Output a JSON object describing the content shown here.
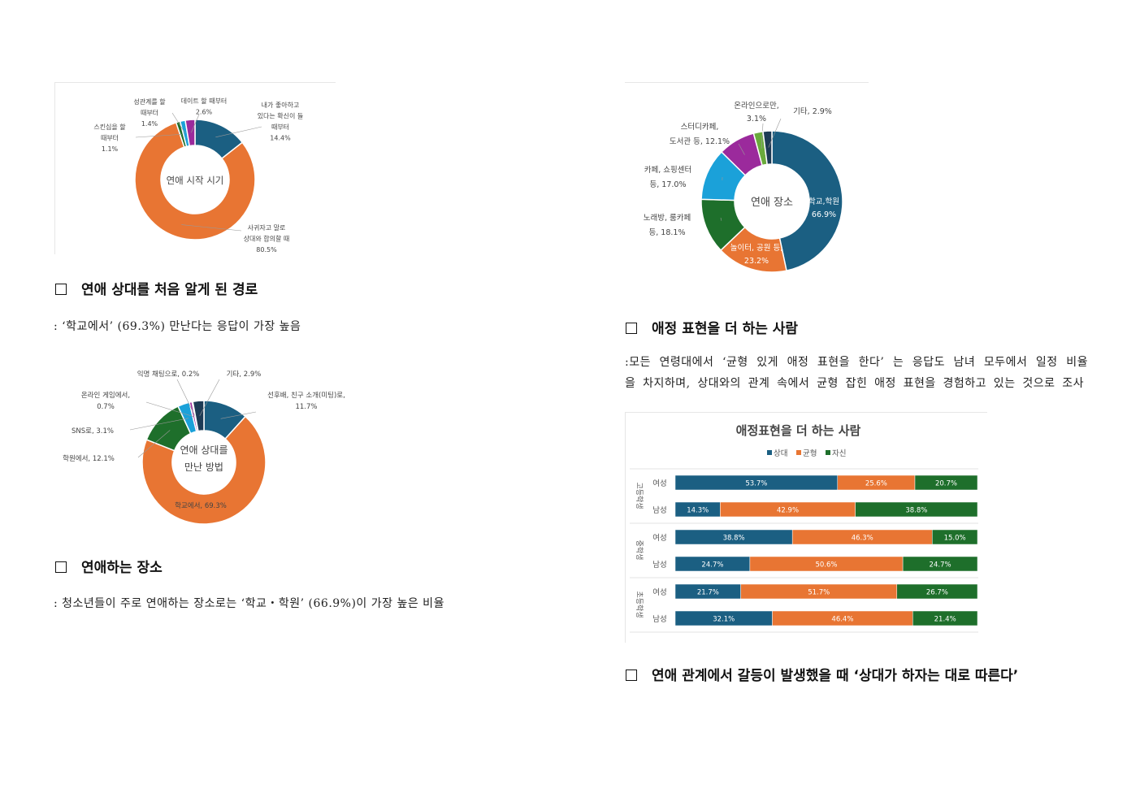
{
  "colors": {
    "blue": "#1b5f82",
    "orange": "#e87533",
    "green": "#1e6f2b",
    "lightblue": "#1ba1d9",
    "purple": "#9b2a9c",
    "lightgreen": "#6aaa3c",
    "navy": "#1d3b55",
    "pink": "#d94a86",
    "red": "#c0392b"
  },
  "sections": {
    "path": {
      "heading": "연애 상대를 처음 알게 된 경로",
      "text": ": ‘학교에서’ (69.3%) 만난다는 응답이 가장 높음"
    },
    "place": {
      "heading": "연애하는 장소",
      "text": ": 청소년들이 주로 연애하는 장소로는 ‘학교・학원’ (66.9%)이 가장 높은 비율"
    },
    "affection": {
      "heading": "애정 표현을 더 하는 사람",
      "text_line1": ":모든 연령대에서 ‘균형 있게 애정 표현을 한다’ 는 응답도 남녀 모두에서 일정 비율",
      "text_line2": "을 차지하며, 상대와의 관계 속에서 균형 잡힌 애정 표현을 경험하고 있는 것으로 조사"
    },
    "conflict": {
      "heading": "연애 관계에서 갈등이 발생했을 때 ‘상대가 하자는 대로 따른다’"
    }
  },
  "chart_data": [
    {
      "type": "pie",
      "title": "연애 시작 시기",
      "slices": [
        {
          "label_lines": [
            "내가 좋아하고",
            "있다는 확신이 들",
            "때부터",
            "14.4%"
          ],
          "value": 14.4,
          "color": "#1b5f82"
        },
        {
          "label_lines": [
            "사귀자고 말로",
            "상대와 합의할 때",
            "80.5%"
          ],
          "value": 80.5,
          "color": "#e87533"
        },
        {
          "label_lines": [
            "스킨십을 할",
            "때부터",
            "1.1%"
          ],
          "value": 1.1,
          "color": "#1e6f2b"
        },
        {
          "label_lines": [
            "성관계를 할",
            "때부터",
            "1.4%"
          ],
          "value": 1.4,
          "color": "#1ba1d9"
        },
        {
          "label_lines": [
            "데이트 할 때부터",
            "2.6%"
          ],
          "value": 2.6,
          "color": "#9b2a9c"
        }
      ]
    },
    {
      "type": "pie",
      "title_lines": [
        "연애 상대를",
        "만난 방법"
      ],
      "slices": [
        {
          "label_lines": [
            "선후배, 친구 소개(미팅)로,",
            "11.7%"
          ],
          "value": 11.7,
          "color": "#1b5f82"
        },
        {
          "label_lines": [
            "학교에서, 69.3%"
          ],
          "value": 69.3,
          "color": "#e87533"
        },
        {
          "label_lines": [
            "학원에서, 12.1%"
          ],
          "value": 12.1,
          "color": "#1e6f2b"
        },
        {
          "label_lines": [
            "SNS로, 3.1%"
          ],
          "value": 3.1,
          "color": "#1ba1d9"
        },
        {
          "label_lines": [
            "온라인 게임에서,",
            "0.7%"
          ],
          "value": 0.7,
          "color": "#9b2a9c"
        },
        {
          "label_lines": [
            "익명 채팅으로, 0.2%"
          ],
          "value": 0.2,
          "color": "#c0392b"
        },
        {
          "label_lines": [
            "기타, 2.9%"
          ],
          "value": 2.9,
          "color": "#1d3b55"
        }
      ]
    },
    {
      "type": "pie",
      "title": "연애 장소",
      "slices": [
        {
          "label_lines": [
            "학교,학원",
            "66.9%"
          ],
          "value": 66.9,
          "color": "#1b5f82"
        },
        {
          "label_lines": [
            "놀이터, 공원 등,",
            "23.2%"
          ],
          "value": 23.2,
          "color": "#e87533"
        },
        {
          "label_lines": [
            "노래방, 룸카페",
            "등, 18.1%"
          ],
          "value": 18.1,
          "color": "#1e6f2b"
        },
        {
          "label_lines": [
            "카페, 쇼핑센터",
            "등, 17.0%"
          ],
          "value": 17.0,
          "color": "#1ba1d9"
        },
        {
          "label_lines": [
            "스터디카페,",
            "도서관 등, 12.1%"
          ],
          "value": 12.1,
          "color": "#9b2a9c"
        },
        {
          "label_lines": [
            "온라인으로만,",
            "3.1%"
          ],
          "value": 3.1,
          "color": "#6aaa3c"
        },
        {
          "label_lines": [
            "기타, 2.9%"
          ],
          "value": 2.9,
          "color": "#1d3b55"
        }
      ]
    },
    {
      "type": "bar",
      "stacked": true,
      "orientation": "horizontal",
      "title": "애정표현을 더 하는 사람",
      "legend": [
        "상대",
        "균형",
        "자신"
      ],
      "legend_position": "top",
      "groups": [
        {
          "name": "고등학생",
          "rows": [
            {
              "label": "여성",
              "values": [
                53.7,
                25.6,
                20.7
              ]
            },
            {
              "label": "남성",
              "values": [
                14.3,
                42.9,
                38.8
              ]
            }
          ]
        },
        {
          "name": "중학생",
          "rows": [
            {
              "label": "여성",
              "values": [
                38.8,
                46.3,
                15.0
              ]
            },
            {
              "label": "남성",
              "values": [
                24.7,
                50.6,
                24.7
              ]
            }
          ]
        },
        {
          "name": "초등학생",
          "rows": [
            {
              "label": "여성",
              "values": [
                21.7,
                51.7,
                26.7
              ]
            },
            {
              "label": "남성",
              "values": [
                32.1,
                46.4,
                21.4
              ]
            }
          ]
        }
      ],
      "series_colors": [
        "#1b5f82",
        "#e87533",
        "#1e6f2b"
      ]
    }
  ]
}
